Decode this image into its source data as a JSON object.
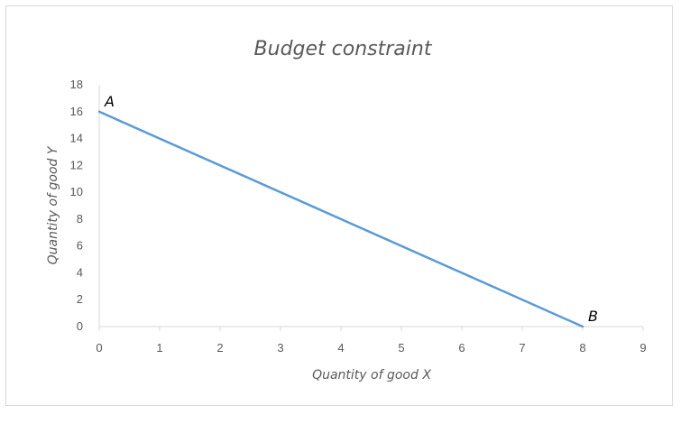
{
  "chart_data": {
    "type": "line",
    "title": "Budget constraint",
    "xlabel": "Quantity of good X",
    "ylabel": "Quantity of good Y",
    "xlim": [
      0,
      9
    ],
    "ylim": [
      0,
      18
    ],
    "x_ticks": [
      "0",
      "1",
      "2",
      "3",
      "4",
      "5",
      "6",
      "7",
      "8",
      "9"
    ],
    "y_ticks": [
      "0",
      "2",
      "4",
      "6",
      "8",
      "10",
      "12",
      "14",
      "16",
      "18"
    ],
    "grid": false,
    "legend": "none",
    "series": [
      {
        "x": [
          0,
          8
        ],
        "y": [
          16,
          0
        ],
        "color": "#5b9bd5"
      }
    ],
    "annotations": [
      {
        "text": "A",
        "x": 0,
        "y": 16
      },
      {
        "text": "B",
        "x": 8,
        "y": 0
      }
    ]
  }
}
